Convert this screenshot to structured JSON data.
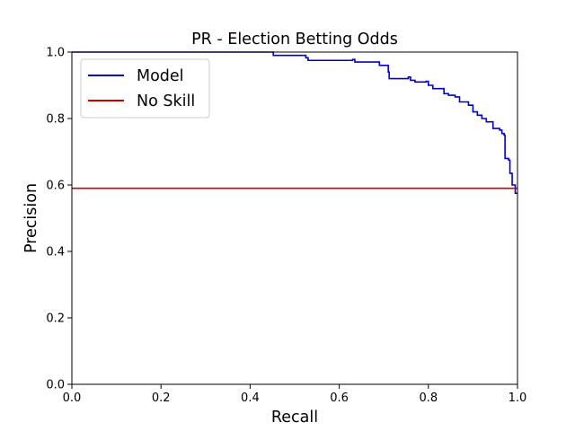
{
  "chart_data": {
    "type": "line",
    "title": "PR - Election Betting Odds",
    "xlabel": "Recall",
    "ylabel": "Precision",
    "xlim": [
      0.0,
      1.0
    ],
    "ylim": [
      0.0,
      1.0
    ],
    "xticks": [
      "0.0",
      "0.2",
      "0.4",
      "0.6",
      "0.8",
      "1.0"
    ],
    "yticks": [
      "0.0",
      "0.2",
      "0.4",
      "0.6",
      "0.8",
      "1.0"
    ],
    "grid": false,
    "legend_position": "upper-left",
    "series": [
      {
        "name": "Model",
        "color": "#0000cc",
        "style": "step",
        "points": [
          [
            0.0,
            1.0
          ],
          [
            0.447,
            1.0
          ],
          [
            0.452,
            0.99
          ],
          [
            0.52,
            0.99
          ],
          [
            0.525,
            0.983
          ],
          [
            0.53,
            0.975
          ],
          [
            0.63,
            0.978
          ],
          [
            0.635,
            0.97
          ],
          [
            0.675,
            0.97
          ],
          [
            0.69,
            0.96
          ],
          [
            0.705,
            0.96
          ],
          [
            0.71,
            0.94
          ],
          [
            0.712,
            0.92
          ],
          [
            0.755,
            0.925
          ],
          [
            0.76,
            0.915
          ],
          [
            0.77,
            0.91
          ],
          [
            0.795,
            0.912
          ],
          [
            0.8,
            0.9
          ],
          [
            0.81,
            0.89
          ],
          [
            0.825,
            0.89
          ],
          [
            0.835,
            0.875
          ],
          [
            0.845,
            0.87
          ],
          [
            0.86,
            0.865
          ],
          [
            0.87,
            0.85
          ],
          [
            0.885,
            0.85
          ],
          [
            0.89,
            0.84
          ],
          [
            0.9,
            0.82
          ],
          [
            0.91,
            0.81
          ],
          [
            0.92,
            0.8
          ],
          [
            0.93,
            0.79
          ],
          [
            0.94,
            0.79
          ],
          [
            0.945,
            0.77
          ],
          [
            0.96,
            0.765
          ],
          [
            0.965,
            0.755
          ],
          [
            0.97,
            0.75
          ],
          [
            0.972,
            0.68
          ],
          [
            0.98,
            0.675
          ],
          [
            0.983,
            0.635
          ],
          [
            0.988,
            0.6
          ],
          [
            0.993,
            0.6
          ],
          [
            0.995,
            0.575
          ],
          [
            1.0,
            0.575
          ]
        ]
      },
      {
        "name": "No Skill",
        "color": "#cc0000",
        "style": "line",
        "points": [
          [
            0.0,
            0.59
          ],
          [
            1.0,
            0.59
          ]
        ]
      }
    ]
  }
}
